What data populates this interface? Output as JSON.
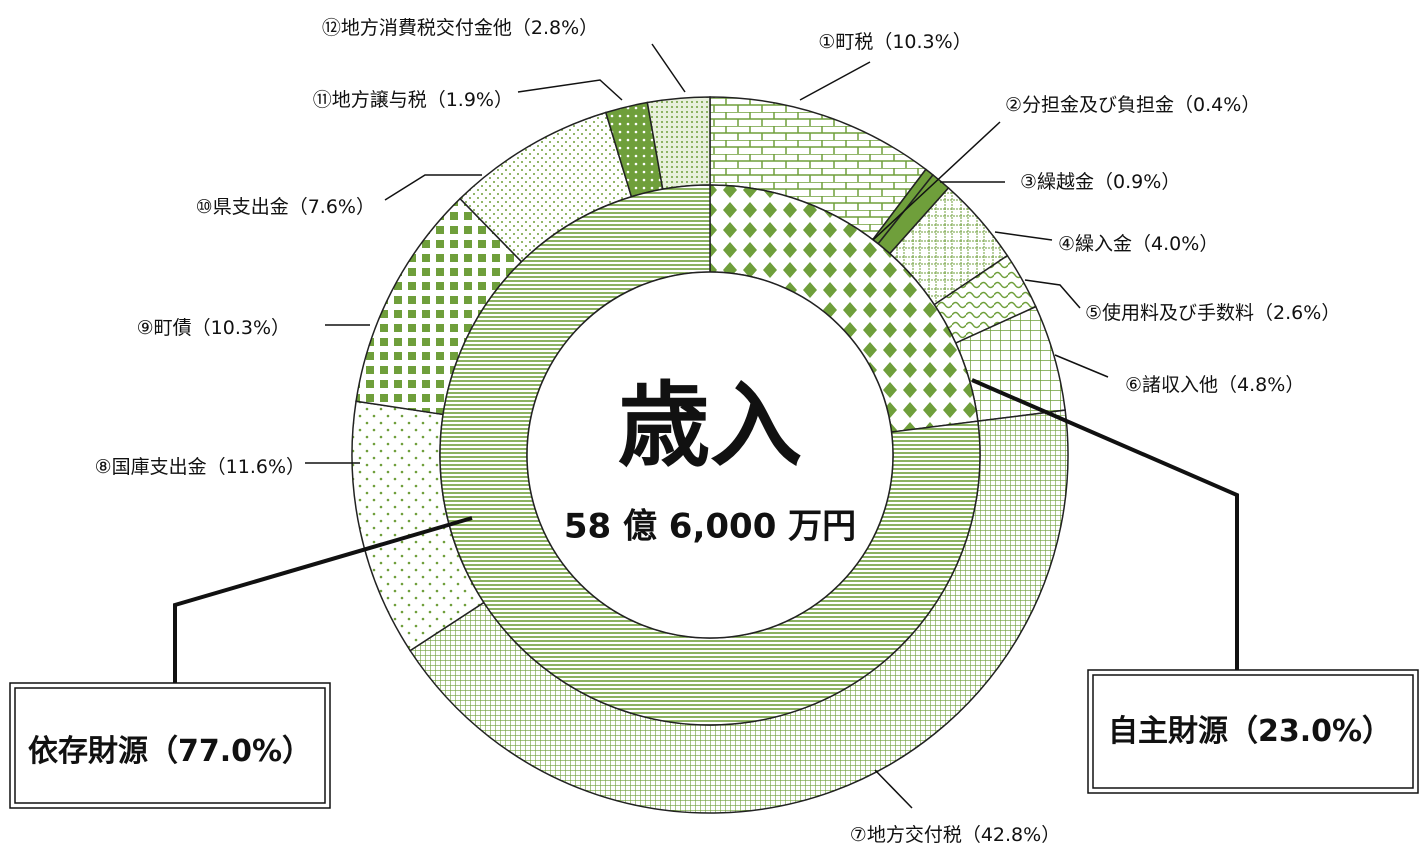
{
  "chart_data": {
    "type": "donut",
    "center_label": "歳入",
    "total_label": "58 億 6,000 万円",
    "color": "#6f9f3b",
    "outer": {
      "categories": [
        "①町税",
        "②分担金及び負担金",
        "③繰越金",
        "④繰入金",
        "⑤使用料及び手数料",
        "⑥諸収入他",
        "⑦地方交付税",
        "⑧国庫支出金",
        "⑨町債",
        "⑩県支出金",
        "⑪地方譲与税",
        "⑫地方消費税交付金他"
      ],
      "values": [
        10.3,
        0.4,
        0.9,
        4.0,
        2.6,
        4.8,
        42.8,
        11.6,
        10.3,
        7.6,
        1.9,
        2.8
      ],
      "value_labels": [
        "（10.3%）",
        "（0.4%）",
        "（0.9%）",
        "（4.0%）",
        "（2.6%）",
        "（4.8%）",
        "（42.8%）",
        "（11.6%）",
        "（10.3%）",
        "（7.6%）",
        "（1.9%）",
        "（2.8%）"
      ]
    },
    "inner": {
      "categories": [
        "自主財源",
        "依存財源"
      ],
      "values": [
        23.0,
        77.0
      ],
      "value_labels": [
        "（23.0%）",
        "（77.0%）"
      ]
    }
  }
}
